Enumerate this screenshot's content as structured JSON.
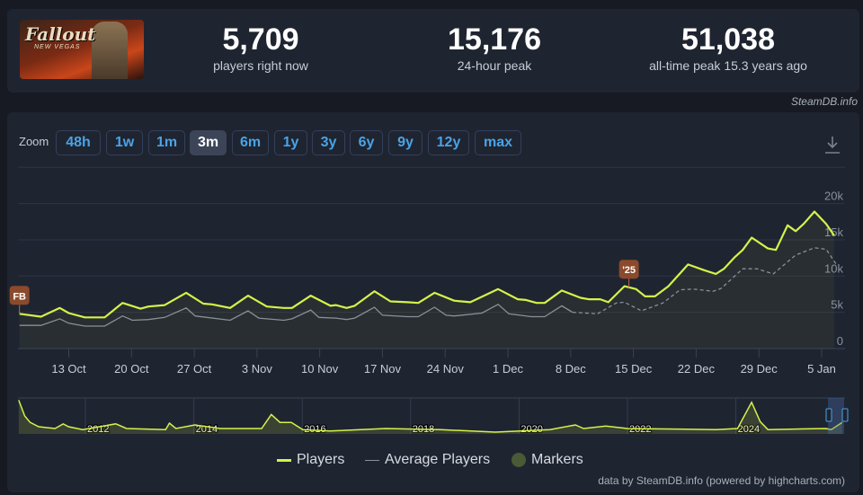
{
  "game": {
    "logo_text": "Fallout",
    "logo_sub": "NEW VEGAS"
  },
  "stats": [
    {
      "value": "5,709",
      "label": "players right now"
    },
    {
      "value": "15,176",
      "label": "24-hour peak"
    },
    {
      "value": "51,038",
      "label": "all-time peak 15.3 years ago"
    }
  ],
  "credit": "SteamDB.info",
  "zoom": {
    "label": "Zoom",
    "buttons": [
      "48h",
      "1w",
      "1m",
      "3m",
      "6m",
      "1y",
      "3y",
      "6y",
      "9y",
      "12y",
      "max"
    ],
    "active": "3m"
  },
  "colors": {
    "players": "#d4f24a",
    "average": "#8a8f98",
    "marker": "#8b4a2b"
  },
  "chart_data": {
    "type": "line",
    "x_unit": "days since 13 Oct",
    "ylim": [
      0,
      25000
    ],
    "yticks": [
      {
        "v": 0,
        "label": "0"
      },
      {
        "v": 5000,
        "label": "5k"
      },
      {
        "v": 10000,
        "label": "10k"
      },
      {
        "v": 15000,
        "label": "15k"
      },
      {
        "v": 20000,
        "label": "20k"
      }
    ],
    "xticks": [
      {
        "d": 0,
        "label": "13 Oct"
      },
      {
        "d": 7,
        "label": "20 Oct"
      },
      {
        "d": 14,
        "label": "27 Oct"
      },
      {
        "d": 21,
        "label": "3 Nov"
      },
      {
        "d": 28,
        "label": "10 Nov"
      },
      {
        "d": 35,
        "label": "17 Nov"
      },
      {
        "d": 42,
        "label": "24 Nov"
      },
      {
        "d": 49,
        "label": "1 Dec"
      },
      {
        "d": 56,
        "label": "8 Dec"
      },
      {
        "d": 63,
        "label": "15 Dec"
      },
      {
        "d": 70,
        "label": "22 Dec"
      },
      {
        "d": 77,
        "label": "29 Dec"
      },
      {
        "d": 84,
        "label": "5 Jan"
      }
    ],
    "series": [
      {
        "name": "Players",
        "points": [
          [
            -5.5,
            4800
          ],
          [
            -3.1,
            4400
          ],
          [
            -1,
            5600
          ],
          [
            0,
            4900
          ],
          [
            1.8,
            4300
          ],
          [
            4,
            4300
          ],
          [
            6,
            6300
          ],
          [
            8,
            5500
          ],
          [
            8.9,
            5800
          ],
          [
            10.7,
            6000
          ],
          [
            13.1,
            7700
          ],
          [
            15,
            6200
          ],
          [
            16,
            6100
          ],
          [
            18,
            5600
          ],
          [
            20,
            7300
          ],
          [
            22.1,
            5800
          ],
          [
            24,
            5600
          ],
          [
            24.9,
            5600
          ],
          [
            27,
            7300
          ],
          [
            29.2,
            5900
          ],
          [
            29.8,
            6000
          ],
          [
            31,
            5600
          ],
          [
            31.9,
            5900
          ],
          [
            34.1,
            7900
          ],
          [
            35.9,
            6500
          ],
          [
            37.8,
            6400
          ],
          [
            39,
            6300
          ],
          [
            40.8,
            7700
          ],
          [
            43,
            6600
          ],
          [
            44.8,
            6400
          ],
          [
            47.9,
            8200
          ],
          [
            50.1,
            6800
          ],
          [
            51,
            6700
          ],
          [
            52.2,
            6300
          ],
          [
            53.1,
            6300
          ],
          [
            55,
            8000
          ],
          [
            57.1,
            7000
          ],
          [
            58,
            6800
          ],
          [
            59.3,
            6800
          ],
          [
            60.2,
            6400
          ],
          [
            62,
            8600
          ],
          [
            63.3,
            8200
          ],
          [
            64.3,
            7200
          ],
          [
            65.4,
            7200
          ],
          [
            66.9,
            8600
          ],
          [
            69.1,
            11600
          ],
          [
            70.9,
            10800
          ],
          [
            72.2,
            10300
          ],
          [
            73.1,
            11000
          ],
          [
            74.3,
            12600
          ],
          [
            75.2,
            13600
          ],
          [
            76.2,
            15300
          ],
          [
            78,
            13800
          ],
          [
            78.9,
            13600
          ],
          [
            80.2,
            17000
          ],
          [
            81.1,
            16200
          ],
          [
            82,
            17200
          ],
          [
            83.2,
            18900
          ],
          [
            84.5,
            17200
          ],
          [
            85.4,
            15600
          ]
        ]
      },
      {
        "name": "Average Players",
        "dashed_from": 56,
        "points": [
          [
            -5.5,
            3200
          ],
          [
            -3.1,
            3200
          ],
          [
            -1,
            4100
          ],
          [
            0,
            3500
          ],
          [
            1.8,
            3100
          ],
          [
            4,
            3100
          ],
          [
            6,
            4500
          ],
          [
            7.1,
            3900
          ],
          [
            8.9,
            4000
          ],
          [
            10.7,
            4300
          ],
          [
            13.1,
            5600
          ],
          [
            14.1,
            4500
          ],
          [
            18,
            3900
          ],
          [
            20,
            5200
          ],
          [
            21.2,
            4200
          ],
          [
            24,
            3900
          ],
          [
            24.9,
            4100
          ],
          [
            27,
            5300
          ],
          [
            27.9,
            4300
          ],
          [
            29.8,
            4200
          ],
          [
            31,
            4000
          ],
          [
            31.9,
            4200
          ],
          [
            34.1,
            5700
          ],
          [
            35,
            4600
          ],
          [
            37.8,
            4400
          ],
          [
            39,
            4400
          ],
          [
            40.8,
            5700
          ],
          [
            42.1,
            4600
          ],
          [
            43,
            4500
          ],
          [
            46.1,
            4900
          ],
          [
            47.9,
            6100
          ],
          [
            49.1,
            4800
          ],
          [
            51.6,
            4400
          ],
          [
            53.1,
            4400
          ],
          [
            55,
            5900
          ],
          [
            56.2,
            5000
          ],
          [
            59,
            4800
          ],
          [
            61.1,
            6300
          ],
          [
            62,
            6400
          ],
          [
            63.9,
            5200
          ],
          [
            66.3,
            6300
          ],
          [
            68.2,
            8100
          ],
          [
            69.7,
            8200
          ],
          [
            71.9,
            7900
          ],
          [
            72.8,
            8300
          ],
          [
            75.2,
            11000
          ],
          [
            76.8,
            11000
          ],
          [
            78.6,
            10300
          ],
          [
            81.1,
            12900
          ],
          [
            83.2,
            13900
          ],
          [
            84.5,
            13700
          ],
          [
            85.7,
            11500
          ]
        ]
      }
    ],
    "markers": [
      {
        "d": -5.5,
        "v": 4800,
        "label": "FB"
      },
      {
        "d": 62.5,
        "v": 8400,
        "label": "'25"
      }
    ],
    "navigator": {
      "years": [
        "2012",
        "2014",
        "2016",
        "2018",
        "2020",
        "2022",
        "2024"
      ],
      "points": [
        [
          2010.77,
          47000
        ],
        [
          2010.88,
          25000
        ],
        [
          2010.98,
          16000
        ],
        [
          2011.14,
          10000
        ],
        [
          2011.44,
          7500
        ],
        [
          2011.59,
          14000
        ],
        [
          2011.69,
          10000
        ],
        [
          2011.95,
          6000
        ],
        [
          2012.56,
          14000
        ],
        [
          2012.76,
          7500
        ],
        [
          2013.48,
          6000
        ],
        [
          2013.55,
          15000
        ],
        [
          2013.67,
          7500
        ],
        [
          2014.02,
          12500
        ],
        [
          2014.49,
          7500
        ],
        [
          2015.1,
          7500
        ],
        [
          2015.25,
          7500
        ],
        [
          2015.43,
          27000
        ],
        [
          2015.59,
          16000
        ],
        [
          2015.8,
          16000
        ],
        [
          2016.01,
          6000
        ],
        [
          2016.51,
          4000
        ],
        [
          2017.54,
          7500
        ],
        [
          2018.55,
          6000
        ],
        [
          2019.56,
          2500
        ],
        [
          2020.57,
          6000
        ],
        [
          2021.04,
          12500
        ],
        [
          2021.19,
          7500
        ],
        [
          2021.6,
          11000
        ],
        [
          2022.0,
          7500
        ],
        [
          2023.63,
          6000
        ],
        [
          2024.03,
          7500
        ],
        [
          2024.29,
          44000
        ],
        [
          2024.45,
          17000
        ],
        [
          2024.59,
          6000
        ],
        [
          2025.66,
          7500
        ],
        [
          2025.76,
          6000
        ],
        [
          2025.96,
          16000
        ]
      ]
    },
    "legend": [
      {
        "label": "Players"
      },
      {
        "label": "Average Players"
      },
      {
        "label": "Markers"
      }
    ]
  },
  "footer": "data by SteamDB.info (powered by highcharts.com)"
}
